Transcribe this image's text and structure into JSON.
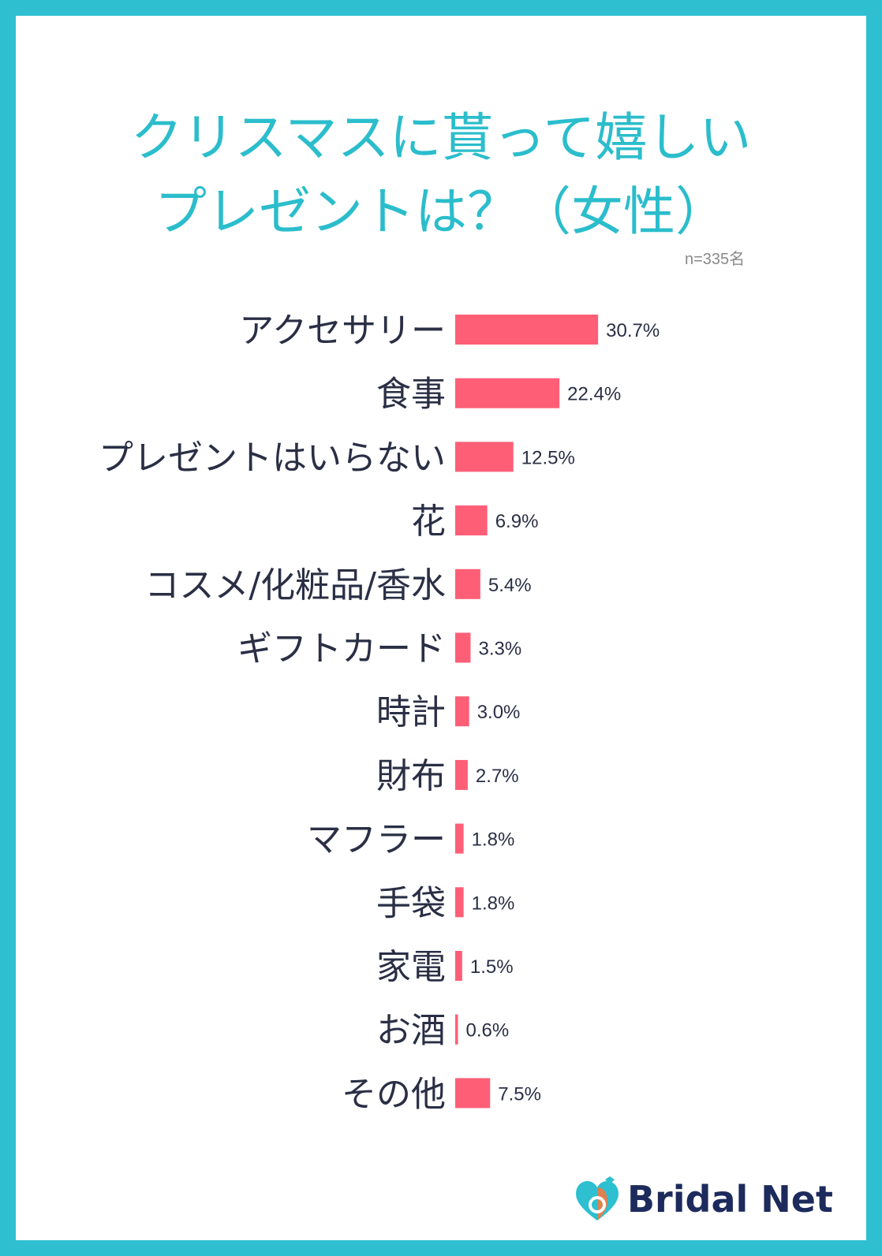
{
  "title_line1": "クリスマスに貰って嬉しい",
  "title_line2": "プレゼントは？（女性）",
  "sample_size": "n=335名",
  "brand": "Bridal Net",
  "colors": {
    "frame": "#2ebfd0",
    "title": "#2bbdcc",
    "bar": "#fe5f77",
    "text": "#2a2f45",
    "brand": "#1d2a5c"
  },
  "chart_data": {
    "type": "bar",
    "orientation": "horizontal",
    "title": "クリスマスに貰って嬉しいプレゼントは？（女性）",
    "categories": [
      "アクセサリー",
      "食事",
      "プレゼントはいらない",
      "花",
      "コスメ/化粧品/香水",
      "ギフトカード",
      "時計",
      "財布",
      "マフラー",
      "手袋",
      "家電",
      "お酒",
      "その他"
    ],
    "values": [
      30.7,
      22.4,
      12.5,
      6.9,
      5.4,
      3.3,
      3.0,
      2.7,
      1.8,
      1.8,
      1.5,
      0.6,
      7.5
    ],
    "value_labels": [
      "30.7%",
      "22.4%",
      "12.5%",
      "6.9%",
      "5.4%",
      "3.3%",
      "3.0%",
      "2.7%",
      "1.8%",
      "1.8%",
      "1.5%",
      "0.6%",
      "7.5%"
    ],
    "unit": "%",
    "grid": false,
    "legend": "none"
  }
}
